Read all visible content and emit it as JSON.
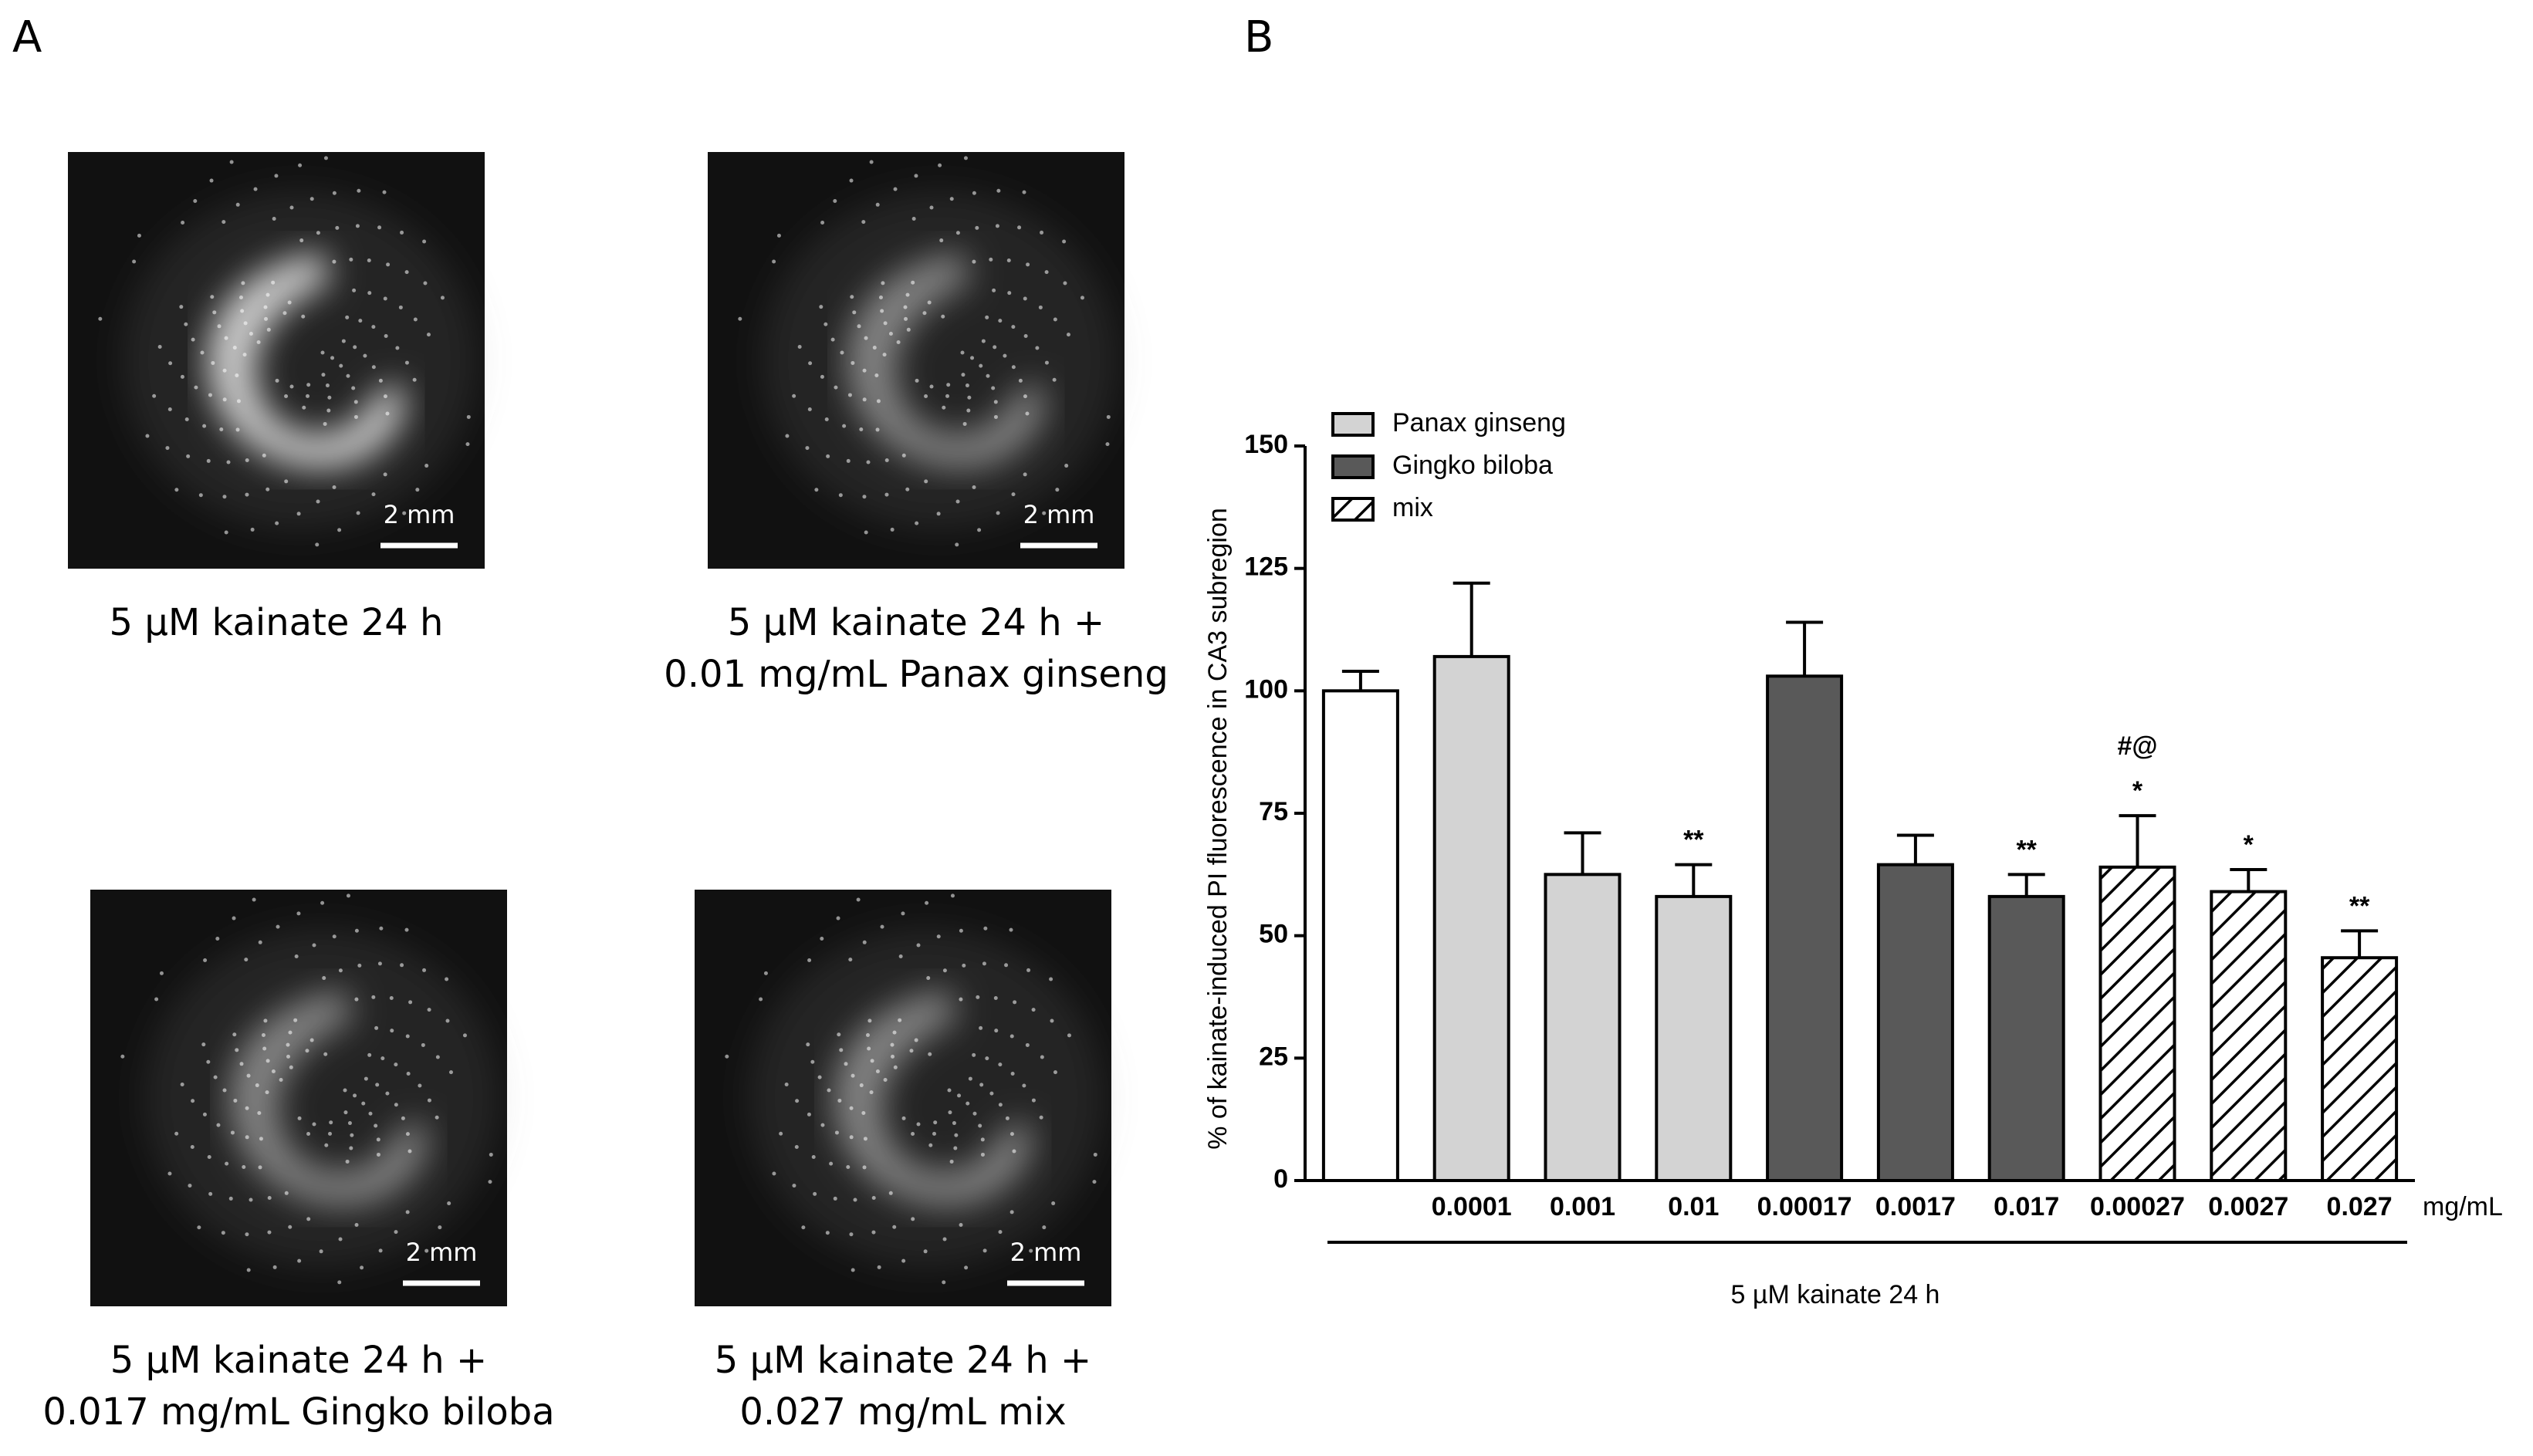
{
  "panel_a": {
    "label": "A",
    "images": [
      {
        "scale_bar": "2 mm",
        "caption": [
          "5 µM kainate 24 h"
        ]
      },
      {
        "scale_bar": "2 mm",
        "caption": [
          "5 µM kainate 24 h +",
          "0.01 mg/mL Panax ginseng"
        ]
      },
      {
        "scale_bar": "2 mm",
        "caption": [
          "5 µM kainate 24 h +",
          "0.017 mg/mL Gingko biloba"
        ]
      },
      {
        "scale_bar": "2 mm",
        "caption": [
          "5 µM kainate 24 h +",
          "0.027 mg/mL mix"
        ]
      }
    ]
  },
  "chart_data": {
    "type": "bar",
    "panel_label": "B",
    "y_label": "% of kainate-induced PI fluorescence in CA3 subregion",
    "x_unit": "mg/mL",
    "x_group_label": "5 µM kainate 24 h",
    "categories": [
      null,
      "0.0001",
      "0.001",
      "0.01",
      "0.00017",
      "0.0017",
      "0.017",
      "0.00027",
      "0.0027",
      "0.027"
    ],
    "series": [
      {
        "name": null,
        "color": "#ffffff",
        "values": [
          100,
          null,
          null,
          null,
          null,
          null,
          null,
          null,
          null,
          null
        ],
        "errors": [
          4,
          null,
          null,
          null,
          null,
          null,
          null,
          null,
          null,
          null
        ]
      },
      {
        "name": "Panax ginseng",
        "color": "#d3d3d3",
        "values": [
          null,
          107,
          62.5,
          58,
          null,
          null,
          null,
          null,
          null,
          null
        ],
        "errors": [
          null,
          15,
          8.5,
          6.5,
          null,
          null,
          null,
          null,
          null,
          null
        ]
      },
      {
        "name": "Gingko biloba",
        "color": "#595959",
        "values": [
          null,
          null,
          null,
          null,
          103,
          64.5,
          58,
          null,
          null,
          null
        ],
        "errors": [
          null,
          null,
          null,
          null,
          11,
          6,
          4.5,
          null,
          null,
          null
        ]
      },
      {
        "name": "mix",
        "color": "#ffffff",
        "pattern": "hatch",
        "values": [
          null,
          null,
          null,
          null,
          null,
          null,
          null,
          64,
          59,
          45.5
        ],
        "errors": [
          null,
          null,
          null,
          null,
          null,
          null,
          null,
          10.5,
          4.5,
          5.5
        ]
      }
    ],
    "annotations": [
      null,
      null,
      null,
      [
        "**"
      ],
      null,
      null,
      [
        "**"
      ],
      [
        "*",
        "#@"
      ],
      [
        "*"
      ],
      [
        "**"
      ]
    ],
    "ylim": [
      0,
      150
    ],
    "yticks": [
      0,
      25,
      50,
      75,
      100,
      125,
      150
    ],
    "legend": "upper left",
    "grid": false
  }
}
